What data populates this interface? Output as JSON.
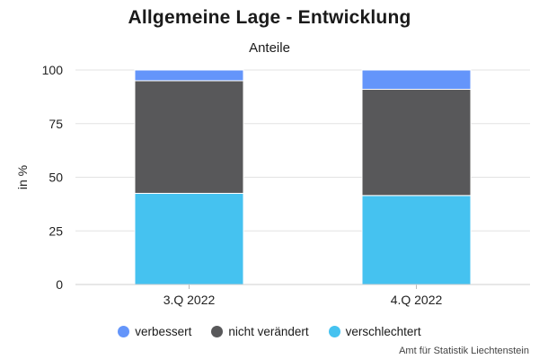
{
  "chart_data": {
    "type": "bar",
    "stacked": true,
    "title": "Allgemeine Lage - Entwicklung",
    "subtitle": "Anteile",
    "xlabel": "",
    "ylabel": "in %",
    "ylim": [
      0,
      100
    ],
    "yticks": [
      0,
      25,
      50,
      75,
      100
    ],
    "grid": true,
    "legend_position": "bottom",
    "categories": [
      "3.Q 2022",
      "4.Q 2022"
    ],
    "series": [
      {
        "name": "verschlechtert",
        "color": "#45c2f0",
        "values": [
          42.5,
          41.5
        ]
      },
      {
        "name": "nicht verändert",
        "color": "#58585a",
        "values": [
          52.5,
          49.5
        ]
      },
      {
        "name": "verbessert",
        "color": "#6495fa",
        "values": [
          5,
          9
        ]
      }
    ],
    "legend_order": [
      "verbessert",
      "nicht verändert",
      "verschlechtert"
    ]
  },
  "source": "Amt für Statistik Liechtenstein"
}
